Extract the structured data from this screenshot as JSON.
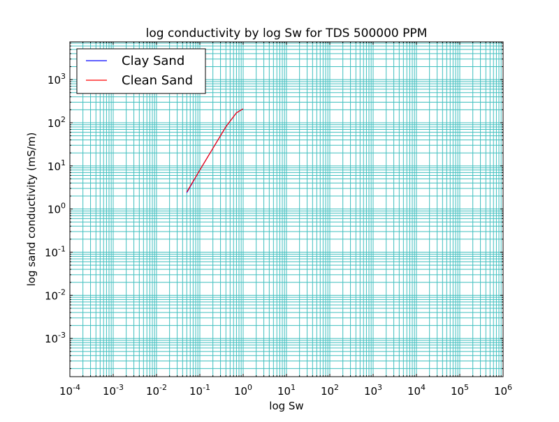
{
  "chart_data": {
    "type": "line",
    "title": "log conductivity by log Sw for TDS 500000 PPM",
    "xlabel": "log Sw",
    "ylabel": "log sand conductivity (mS/m)",
    "xscale": "log",
    "yscale": "log",
    "xlim": [
      0.0001,
      1000000
    ],
    "ylim": [
      0.00013,
      7500
    ],
    "grid": true,
    "grid_which": "both",
    "legend_position": "upper left",
    "x_ticks": [
      {
        "base": "10",
        "exp": "-4",
        "value": 0.0001
      },
      {
        "base": "10",
        "exp": "-3",
        "value": 0.001
      },
      {
        "base": "10",
        "exp": "-2",
        "value": 0.01
      },
      {
        "base": "10",
        "exp": "-1",
        "value": 0.1
      },
      {
        "base": "10",
        "exp": "0",
        "value": 1
      },
      {
        "base": "10",
        "exp": "1",
        "value": 10
      },
      {
        "base": "10",
        "exp": "2",
        "value": 100
      },
      {
        "base": "10",
        "exp": "3",
        "value": 1000
      },
      {
        "base": "10",
        "exp": "4",
        "value": 10000
      },
      {
        "base": "10",
        "exp": "5",
        "value": 100000
      },
      {
        "base": "10",
        "exp": "6",
        "value": 1000000
      }
    ],
    "y_ticks": [
      {
        "base": "10",
        "exp": "-3",
        "value": 0.001
      },
      {
        "base": "10",
        "exp": "-2",
        "value": 0.01
      },
      {
        "base": "10",
        "exp": "-1",
        "value": 0.1
      },
      {
        "base": "10",
        "exp": "0",
        "value": 1
      },
      {
        "base": "10",
        "exp": "1",
        "value": 10
      },
      {
        "base": "10",
        "exp": "2",
        "value": 100
      },
      {
        "base": "10",
        "exp": "3",
        "value": 1000
      }
    ],
    "series": [
      {
        "name": "Clay Sand",
        "color": "#0000ff",
        "x": [
          0.05,
          0.1,
          0.2,
          0.4,
          0.7,
          1.0
        ],
        "y": [
          2.4,
          8.0,
          25.5,
          81.0,
          170.0,
          210.0
        ]
      },
      {
        "name": "Clean Sand",
        "color": "#ff0000",
        "x": [
          0.05,
          0.1,
          0.2,
          0.4,
          0.7,
          1.0
        ],
        "y": [
          2.5,
          8.0,
          25.5,
          81.0,
          170.0,
          210.0
        ]
      }
    ],
    "grid_color": "#40bfbf"
  }
}
